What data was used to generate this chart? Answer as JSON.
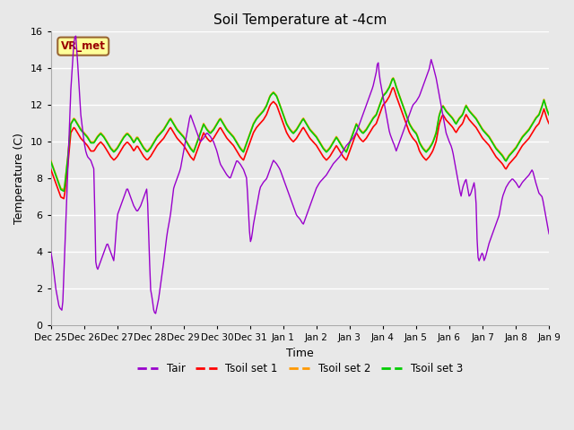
{
  "title": "Soil Temperature at -4cm",
  "xlabel": "Time",
  "ylabel": "Temperature (C)",
  "ylim": [
    0,
    16
  ],
  "yticks": [
    0,
    2,
    4,
    6,
    8,
    10,
    12,
    14,
    16
  ],
  "background_color": "#e8e8e8",
  "line_colors": {
    "Tair": "#9900cc",
    "Tsoil1": "#ff0000",
    "Tsoil2": "#ff9900",
    "Tsoil3": "#00cc00"
  },
  "legend_labels": [
    "Tair",
    "Tsoil set 1",
    "Tsoil set 2",
    "Tsoil set 3"
  ],
  "watermark_text": "VR_met",
  "watermark_color": "#990000",
  "watermark_bg": "#ffff99",
  "x_tick_labels": [
    "Dec 25",
    "Dec 26",
    "Dec 27",
    "Dec 28",
    "Dec 29",
    "Dec 30",
    "Dec 31",
    "Jan 1",
    "Jan 2",
    "Jan 3",
    "Jan 4",
    "Jan 5",
    "Jan 6",
    "Jan 7",
    "Jan 8",
    "Jan 9"
  ],
  "tair_keypoints": [
    [
      0.0,
      4.0
    ],
    [
      0.05,
      3.5
    ],
    [
      0.15,
      2.0
    ],
    [
      0.25,
      1.0
    ],
    [
      0.35,
      0.8
    ],
    [
      0.5,
      8.0
    ],
    [
      0.6,
      12.8
    ],
    [
      0.7,
      15.6
    ],
    [
      0.75,
      15.8
    ],
    [
      0.8,
      14.5
    ],
    [
      0.9,
      11.5
    ],
    [
      1.0,
      10.0
    ],
    [
      1.05,
      9.5
    ],
    [
      1.1,
      9.2
    ],
    [
      1.2,
      9.0
    ],
    [
      1.3,
      8.5
    ],
    [
      1.35,
      3.5
    ],
    [
      1.4,
      3.0
    ],
    [
      1.5,
      3.5
    ],
    [
      1.6,
      4.0
    ],
    [
      1.7,
      4.5
    ],
    [
      1.8,
      4.0
    ],
    [
      1.9,
      3.5
    ],
    [
      2.0,
      6.0
    ],
    [
      2.1,
      6.5
    ],
    [
      2.2,
      7.0
    ],
    [
      2.3,
      7.5
    ],
    [
      2.4,
      7.0
    ],
    [
      2.5,
      6.5
    ],
    [
      2.6,
      6.2
    ],
    [
      2.7,
      6.5
    ],
    [
      2.8,
      7.0
    ],
    [
      2.9,
      7.5
    ],
    [
      3.0,
      2.0
    ],
    [
      3.05,
      1.5
    ],
    [
      3.1,
      0.8
    ],
    [
      3.15,
      0.6
    ],
    [
      3.25,
      1.5
    ],
    [
      3.4,
      3.5
    ],
    [
      3.5,
      5.0
    ],
    [
      3.6,
      6.0
    ],
    [
      3.7,
      7.5
    ],
    [
      3.8,
      8.0
    ],
    [
      3.9,
      8.5
    ],
    [
      4.0,
      9.5
    ],
    [
      4.1,
      10.5
    ],
    [
      4.2,
      11.5
    ],
    [
      4.3,
      11.0
    ],
    [
      4.4,
      10.5
    ],
    [
      4.5,
      10.0
    ],
    [
      4.6,
      10.2
    ],
    [
      4.7,
      10.5
    ],
    [
      4.8,
      10.3
    ],
    [
      4.9,
      10.0
    ],
    [
      5.0,
      9.5
    ],
    [
      5.1,
      8.8
    ],
    [
      5.2,
      8.5
    ],
    [
      5.3,
      8.2
    ],
    [
      5.4,
      8.0
    ],
    [
      5.5,
      8.5
    ],
    [
      5.6,
      9.0
    ],
    [
      5.7,
      8.8
    ],
    [
      5.8,
      8.5
    ],
    [
      5.9,
      8.0
    ],
    [
      6.0,
      4.5
    ],
    [
      6.05,
      4.8
    ],
    [
      6.1,
      5.5
    ],
    [
      6.2,
      6.5
    ],
    [
      6.3,
      7.5
    ],
    [
      6.4,
      7.8
    ],
    [
      6.5,
      8.0
    ],
    [
      6.6,
      8.5
    ],
    [
      6.7,
      9.0
    ],
    [
      6.8,
      8.8
    ],
    [
      6.9,
      8.5
    ],
    [
      7.0,
      8.0
    ],
    [
      7.1,
      7.5
    ],
    [
      7.2,
      7.0
    ],
    [
      7.3,
      6.5
    ],
    [
      7.4,
      6.0
    ],
    [
      7.5,
      5.8
    ],
    [
      7.6,
      5.5
    ],
    [
      7.7,
      6.0
    ],
    [
      7.8,
      6.5
    ],
    [
      7.9,
      7.0
    ],
    [
      8.0,
      7.5
    ],
    [
      8.1,
      7.8
    ],
    [
      8.2,
      8.0
    ],
    [
      8.3,
      8.2
    ],
    [
      8.4,
      8.5
    ],
    [
      8.5,
      8.8
    ],
    [
      8.6,
      9.0
    ],
    [
      8.7,
      9.2
    ],
    [
      8.8,
      9.5
    ],
    [
      8.9,
      9.8
    ],
    [
      9.0,
      10.0
    ],
    [
      9.1,
      10.2
    ],
    [
      9.2,
      10.5
    ],
    [
      9.3,
      11.0
    ],
    [
      9.4,
      11.5
    ],
    [
      9.5,
      12.0
    ],
    [
      9.6,
      12.5
    ],
    [
      9.7,
      13.0
    ],
    [
      9.8,
      13.8
    ],
    [
      9.85,
      14.5
    ],
    [
      9.9,
      13.5
    ],
    [
      10.0,
      12.5
    ],
    [
      10.1,
      11.5
    ],
    [
      10.2,
      10.5
    ],
    [
      10.3,
      10.0
    ],
    [
      10.35,
      9.8
    ],
    [
      10.4,
      9.5
    ],
    [
      10.5,
      10.0
    ],
    [
      10.6,
      10.5
    ],
    [
      10.7,
      11.0
    ],
    [
      10.8,
      11.5
    ],
    [
      10.9,
      12.0
    ],
    [
      11.0,
      12.2
    ],
    [
      11.1,
      12.5
    ],
    [
      11.2,
      13.0
    ],
    [
      11.3,
      13.5
    ],
    [
      11.4,
      14.0
    ],
    [
      11.45,
      14.5
    ],
    [
      11.5,
      14.2
    ],
    [
      11.6,
      13.5
    ],
    [
      11.7,
      12.5
    ],
    [
      11.8,
      11.5
    ],
    [
      11.9,
      10.5
    ],
    [
      12.0,
      10.0
    ],
    [
      12.05,
      9.8
    ],
    [
      12.1,
      9.5
    ],
    [
      12.2,
      8.5
    ],
    [
      12.3,
      7.5
    ],
    [
      12.35,
      7.0
    ],
    [
      12.4,
      7.5
    ],
    [
      12.5,
      8.0
    ],
    [
      12.55,
      7.5
    ],
    [
      12.6,
      7.0
    ],
    [
      12.65,
      7.2
    ],
    [
      12.7,
      7.5
    ],
    [
      12.75,
      7.8
    ],
    [
      12.8,
      7.0
    ],
    [
      12.85,
      3.8
    ],
    [
      12.9,
      3.5
    ],
    [
      12.95,
      3.8
    ],
    [
      13.0,
      4.0
    ],
    [
      13.05,
      3.5
    ],
    [
      13.1,
      3.8
    ],
    [
      13.2,
      4.5
    ],
    [
      13.3,
      5.0
    ],
    [
      13.4,
      5.5
    ],
    [
      13.5,
      6.0
    ],
    [
      13.6,
      7.0
    ],
    [
      13.7,
      7.5
    ],
    [
      13.8,
      7.8
    ],
    [
      13.9,
      8.0
    ],
    [
      14.0,
      7.8
    ],
    [
      14.1,
      7.5
    ],
    [
      14.2,
      7.8
    ],
    [
      14.3,
      8.0
    ],
    [
      14.4,
      8.2
    ],
    [
      14.5,
      8.5
    ],
    [
      14.6,
      7.8
    ],
    [
      14.65,
      7.5
    ],
    [
      14.7,
      7.2
    ],
    [
      14.8,
      7.0
    ],
    [
      14.85,
      6.5
    ],
    [
      14.9,
      6.0
    ],
    [
      14.95,
      5.5
    ],
    [
      15.0,
      5.0
    ]
  ],
  "tsoil1_keypoints": [
    [
      0.0,
      8.5
    ],
    [
      0.2,
      7.5
    ],
    [
      0.3,
      7.0
    ],
    [
      0.4,
      6.9
    ],
    [
      0.5,
      8.5
    ],
    [
      0.6,
      10.5
    ],
    [
      0.7,
      10.8
    ],
    [
      0.8,
      10.5
    ],
    [
      0.9,
      10.2
    ],
    [
      1.0,
      10.0
    ],
    [
      1.1,
      9.8
    ],
    [
      1.2,
      9.5
    ],
    [
      1.3,
      9.5
    ],
    [
      1.4,
      9.8
    ],
    [
      1.5,
      10.0
    ],
    [
      1.6,
      9.8
    ],
    [
      1.7,
      9.5
    ],
    [
      1.8,
      9.2
    ],
    [
      1.9,
      9.0
    ],
    [
      2.0,
      9.2
    ],
    [
      2.1,
      9.5
    ],
    [
      2.2,
      9.8
    ],
    [
      2.3,
      10.0
    ],
    [
      2.4,
      9.8
    ],
    [
      2.5,
      9.5
    ],
    [
      2.6,
      9.8
    ],
    [
      2.7,
      9.5
    ],
    [
      2.8,
      9.2
    ],
    [
      2.9,
      9.0
    ],
    [
      3.0,
      9.2
    ],
    [
      3.1,
      9.5
    ],
    [
      3.2,
      9.8
    ],
    [
      3.3,
      10.0
    ],
    [
      3.4,
      10.2
    ],
    [
      3.5,
      10.5
    ],
    [
      3.6,
      10.8
    ],
    [
      3.7,
      10.5
    ],
    [
      3.8,
      10.2
    ],
    [
      3.9,
      10.0
    ],
    [
      4.0,
      9.8
    ],
    [
      4.1,
      9.5
    ],
    [
      4.2,
      9.2
    ],
    [
      4.3,
      9.0
    ],
    [
      4.4,
      9.5
    ],
    [
      4.5,
      10.0
    ],
    [
      4.6,
      10.5
    ],
    [
      4.7,
      10.2
    ],
    [
      4.8,
      10.0
    ],
    [
      4.9,
      10.2
    ],
    [
      5.0,
      10.5
    ],
    [
      5.1,
      10.8
    ],
    [
      5.2,
      10.5
    ],
    [
      5.3,
      10.2
    ],
    [
      5.4,
      10.0
    ],
    [
      5.5,
      9.8
    ],
    [
      5.6,
      9.5
    ],
    [
      5.7,
      9.2
    ],
    [
      5.8,
      9.0
    ],
    [
      5.9,
      9.5
    ],
    [
      6.0,
      10.0
    ],
    [
      6.1,
      10.5
    ],
    [
      6.2,
      10.8
    ],
    [
      6.3,
      11.0
    ],
    [
      6.4,
      11.2
    ],
    [
      6.5,
      11.5
    ],
    [
      6.6,
      12.0
    ],
    [
      6.7,
      12.2
    ],
    [
      6.8,
      12.0
    ],
    [
      6.9,
      11.5
    ],
    [
      7.0,
      11.0
    ],
    [
      7.1,
      10.5
    ],
    [
      7.2,
      10.2
    ],
    [
      7.3,
      10.0
    ],
    [
      7.4,
      10.2
    ],
    [
      7.5,
      10.5
    ],
    [
      7.6,
      10.8
    ],
    [
      7.7,
      10.5
    ],
    [
      7.8,
      10.2
    ],
    [
      7.9,
      10.0
    ],
    [
      8.0,
      9.8
    ],
    [
      8.1,
      9.5
    ],
    [
      8.2,
      9.2
    ],
    [
      8.3,
      9.0
    ],
    [
      8.4,
      9.2
    ],
    [
      8.5,
      9.5
    ],
    [
      8.6,
      9.8
    ],
    [
      8.7,
      9.5
    ],
    [
      8.8,
      9.2
    ],
    [
      8.9,
      9.0
    ],
    [
      9.0,
      9.5
    ],
    [
      9.1,
      10.0
    ],
    [
      9.2,
      10.5
    ],
    [
      9.3,
      10.2
    ],
    [
      9.4,
      10.0
    ],
    [
      9.5,
      10.2
    ],
    [
      9.6,
      10.5
    ],
    [
      9.7,
      10.8
    ],
    [
      9.8,
      11.0
    ],
    [
      9.9,
      11.5
    ],
    [
      10.0,
      12.0
    ],
    [
      10.1,
      12.2
    ],
    [
      10.2,
      12.5
    ],
    [
      10.3,
      13.0
    ],
    [
      10.35,
      12.8
    ],
    [
      10.4,
      12.5
    ],
    [
      10.5,
      12.0
    ],
    [
      10.6,
      11.5
    ],
    [
      10.7,
      11.0
    ],
    [
      10.8,
      10.5
    ],
    [
      10.9,
      10.2
    ],
    [
      11.0,
      10.0
    ],
    [
      11.05,
      9.8
    ],
    [
      11.1,
      9.5
    ],
    [
      11.2,
      9.2
    ],
    [
      11.3,
      9.0
    ],
    [
      11.4,
      9.2
    ],
    [
      11.5,
      9.5
    ],
    [
      11.6,
      10.0
    ],
    [
      11.7,
      11.0
    ],
    [
      11.8,
      11.5
    ],
    [
      11.9,
      11.2
    ],
    [
      12.0,
      11.0
    ],
    [
      12.1,
      10.8
    ],
    [
      12.2,
      10.5
    ],
    [
      12.3,
      10.8
    ],
    [
      12.4,
      11.0
    ],
    [
      12.5,
      11.5
    ],
    [
      12.6,
      11.2
    ],
    [
      12.7,
      11.0
    ],
    [
      12.8,
      10.8
    ],
    [
      12.9,
      10.5
    ],
    [
      13.0,
      10.2
    ],
    [
      13.1,
      10.0
    ],
    [
      13.2,
      9.8
    ],
    [
      13.3,
      9.5
    ],
    [
      13.4,
      9.2
    ],
    [
      13.5,
      9.0
    ],
    [
      13.6,
      8.8
    ],
    [
      13.7,
      8.5
    ],
    [
      13.8,
      8.8
    ],
    [
      13.9,
      9.0
    ],
    [
      14.0,
      9.2
    ],
    [
      14.1,
      9.5
    ],
    [
      14.2,
      9.8
    ],
    [
      14.3,
      10.0
    ],
    [
      14.4,
      10.2
    ],
    [
      14.5,
      10.5
    ],
    [
      14.6,
      10.8
    ],
    [
      14.7,
      11.0
    ],
    [
      14.8,
      11.5
    ],
    [
      14.85,
      11.8
    ],
    [
      14.9,
      11.5
    ],
    [
      14.95,
      11.2
    ],
    [
      15.0,
      11.0
    ]
  ]
}
